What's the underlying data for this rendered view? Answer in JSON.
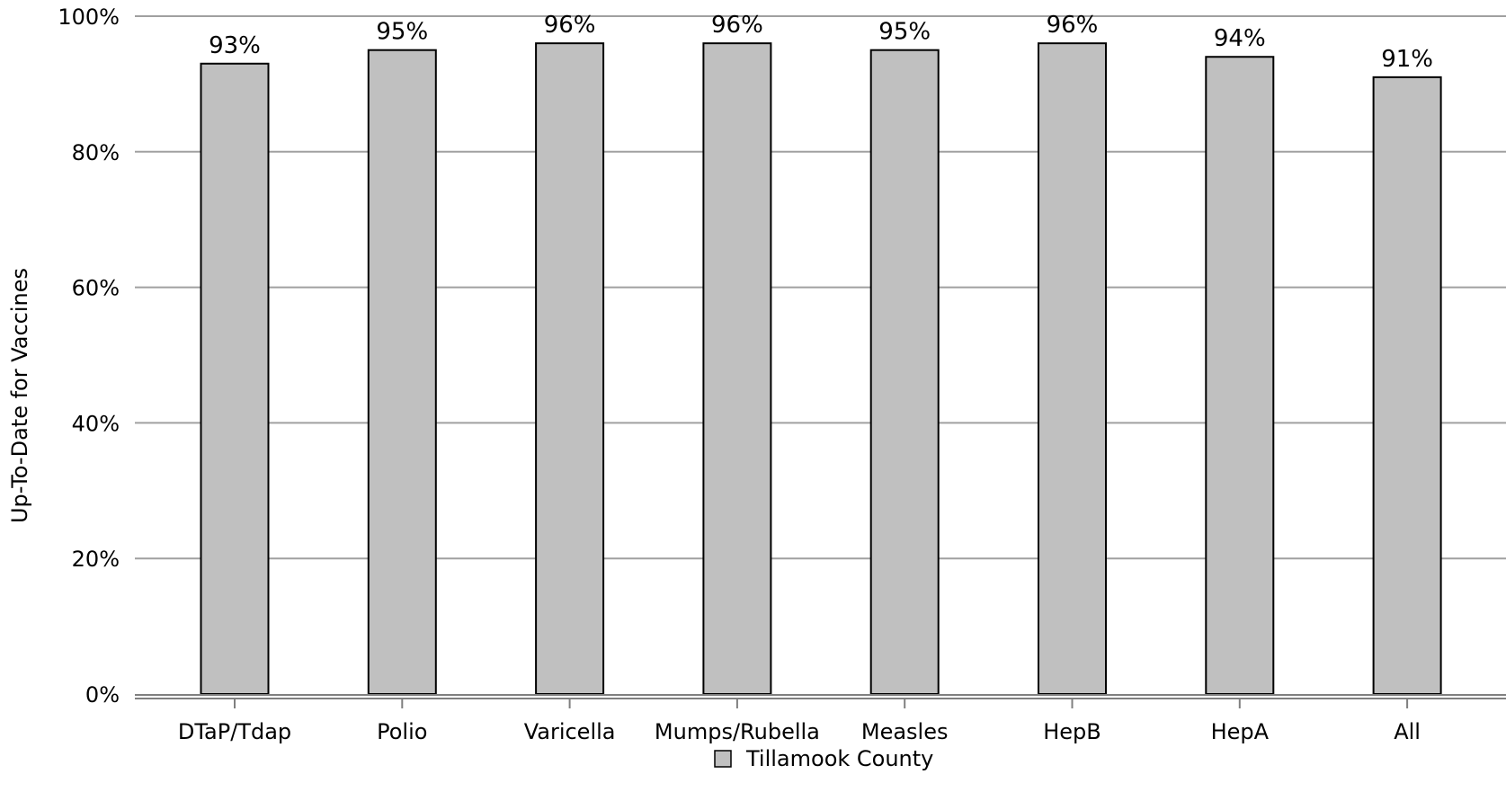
{
  "chart_data": {
    "type": "bar",
    "categories": [
      "DTaP/Tdap",
      "Polio",
      "Varicella",
      "Mumps/Rubella",
      "Measles",
      "HepB",
      "HepA",
      "All"
    ],
    "series": [
      {
        "name": "Tillamook County",
        "values": [
          93,
          95,
          96,
          96,
          95,
          96,
          94,
          91
        ],
        "data_labels": [
          "93%",
          "95%",
          "96%",
          "96%",
          "95%",
          "96%",
          "94%",
          "91%"
        ]
      }
    ],
    "ylabel": "Up-To-Date for Vaccines",
    "xlabel": "",
    "ylim": [
      0,
      100
    ],
    "yticks": [
      0,
      20,
      40,
      60,
      80,
      100
    ],
    "ytick_labels": [
      "0%",
      "20%",
      "40%",
      "60%",
      "80%",
      "100%"
    ],
    "grid": true,
    "legend_position": "bottom",
    "colors": {
      "bar_fill": "#c0c0c0",
      "bar_stroke": "#000000",
      "grid": "#a0a0a0",
      "axis": "#808080"
    }
  }
}
